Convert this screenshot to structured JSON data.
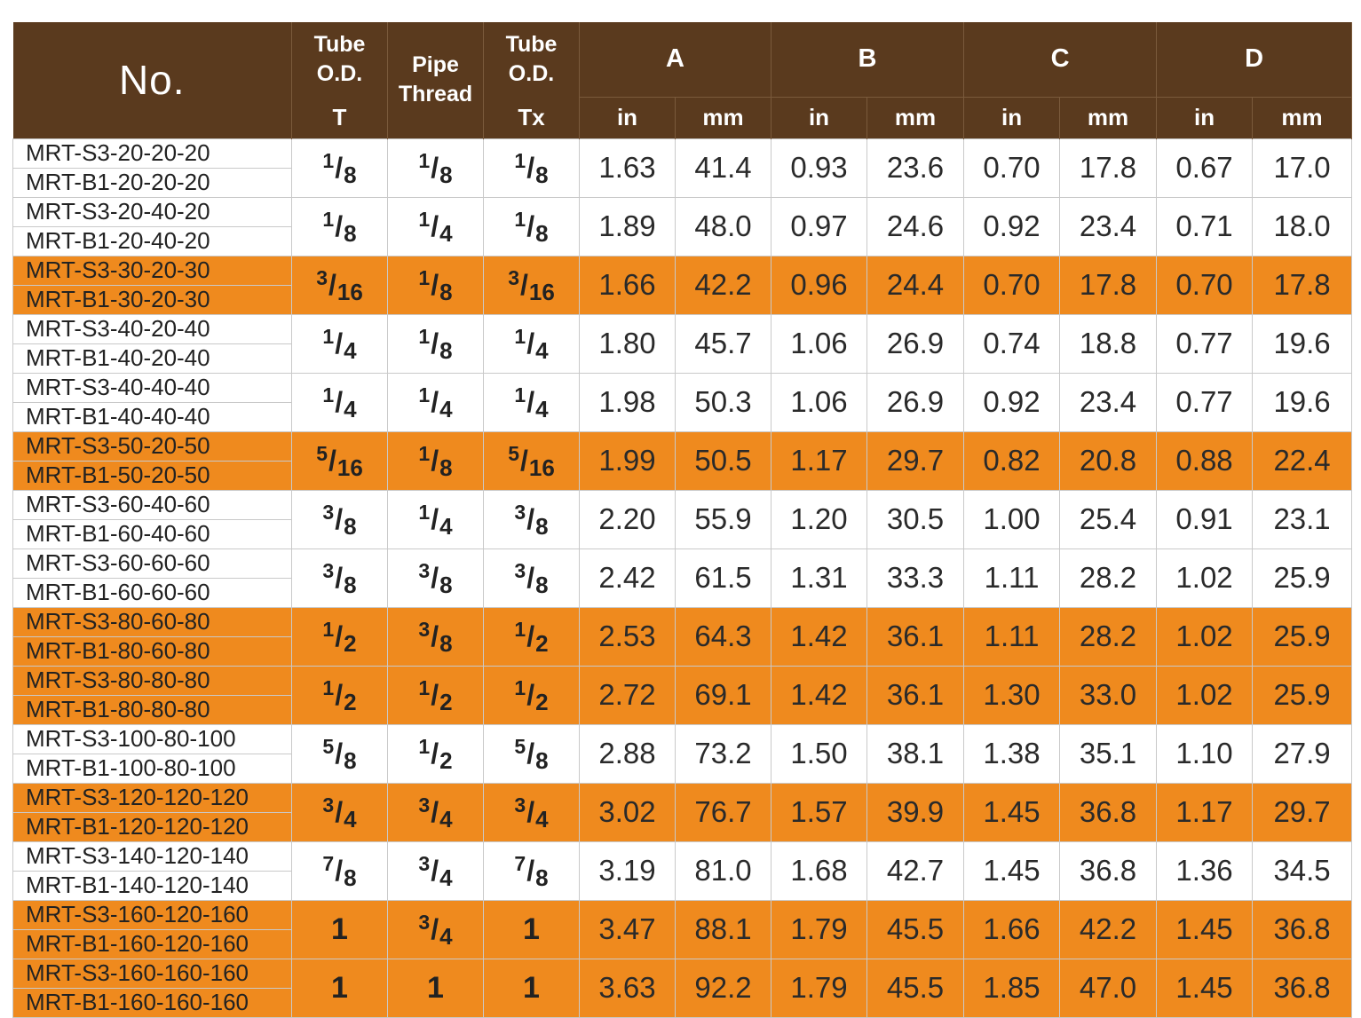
{
  "header": {
    "no": "No.",
    "tube_od_t": [
      "Tube",
      "O.D."
    ],
    "t_sub": "T",
    "pipe_thread": [
      "Pipe",
      "Thread"
    ],
    "tube_od_tx": [
      "Tube",
      "O.D."
    ],
    "tx_sub": "Tx",
    "groups": [
      "A",
      "B",
      "C",
      "D"
    ],
    "units": [
      "in",
      "mm"
    ]
  },
  "colors": {
    "header_bg": "#5a3a1e",
    "highlight": "#ef8a1e",
    "plain": "#ffffff"
  },
  "rows": [
    {
      "parts": [
        "MRT-S3-20-20-20",
        "MRT-B1-20-20-20"
      ],
      "t": [
        "1",
        "8"
      ],
      "pipe": [
        "1",
        "8"
      ],
      "tx": [
        "1",
        "8"
      ],
      "a": [
        "1.63",
        "41.4"
      ],
      "b": [
        "0.93",
        "23.6"
      ],
      "c": [
        "0.70",
        "17.8"
      ],
      "d": [
        "0.67",
        "17.0"
      ],
      "highlight": false
    },
    {
      "parts": [
        "MRT-S3-20-40-20",
        "MRT-B1-20-40-20"
      ],
      "t": [
        "1",
        "8"
      ],
      "pipe": [
        "1",
        "4"
      ],
      "tx": [
        "1",
        "8"
      ],
      "a": [
        "1.89",
        "48.0"
      ],
      "b": [
        "0.97",
        "24.6"
      ],
      "c": [
        "0.92",
        "23.4"
      ],
      "d": [
        "0.71",
        "18.0"
      ],
      "highlight": false
    },
    {
      "parts": [
        "MRT-S3-30-20-30",
        "MRT-B1-30-20-30"
      ],
      "t": [
        "3",
        "16"
      ],
      "pipe": [
        "1",
        "8"
      ],
      "tx": [
        "3",
        "16"
      ],
      "a": [
        "1.66",
        "42.2"
      ],
      "b": [
        "0.96",
        "24.4"
      ],
      "c": [
        "0.70",
        "17.8"
      ],
      "d": [
        "0.70",
        "17.8"
      ],
      "highlight": true
    },
    {
      "parts": [
        "MRT-S3-40-20-40",
        "MRT-B1-40-20-40"
      ],
      "t": [
        "1",
        "4"
      ],
      "pipe": [
        "1",
        "8"
      ],
      "tx": [
        "1",
        "4"
      ],
      "a": [
        "1.80",
        "45.7"
      ],
      "b": [
        "1.06",
        "26.9"
      ],
      "c": [
        "0.74",
        "18.8"
      ],
      "d": [
        "0.77",
        "19.6"
      ],
      "highlight": false
    },
    {
      "parts": [
        "MRT-S3-40-40-40",
        "MRT-B1-40-40-40"
      ],
      "t": [
        "1",
        "4"
      ],
      "pipe": [
        "1",
        "4"
      ],
      "tx": [
        "1",
        "4"
      ],
      "a": [
        "1.98",
        "50.3"
      ],
      "b": [
        "1.06",
        "26.9"
      ],
      "c": [
        "0.92",
        "23.4"
      ],
      "d": [
        "0.77",
        "19.6"
      ],
      "highlight": false
    },
    {
      "parts": [
        "MRT-S3-50-20-50",
        "MRT-B1-50-20-50"
      ],
      "t": [
        "5",
        "16"
      ],
      "pipe": [
        "1",
        "8"
      ],
      "tx": [
        "5",
        "16"
      ],
      "a": [
        "1.99",
        "50.5"
      ],
      "b": [
        "1.17",
        "29.7"
      ],
      "c": [
        "0.82",
        "20.8"
      ],
      "d": [
        "0.88",
        "22.4"
      ],
      "highlight": true
    },
    {
      "parts": [
        "MRT-S3-60-40-60",
        "MRT-B1-60-40-60"
      ],
      "t": [
        "3",
        "8"
      ],
      "pipe": [
        "1",
        "4"
      ],
      "tx": [
        "3",
        "8"
      ],
      "a": [
        "2.20",
        "55.9"
      ],
      "b": [
        "1.20",
        "30.5"
      ],
      "c": [
        "1.00",
        "25.4"
      ],
      "d": [
        "0.91",
        "23.1"
      ],
      "highlight": false
    },
    {
      "parts": [
        "MRT-S3-60-60-60",
        "MRT-B1-60-60-60"
      ],
      "t": [
        "3",
        "8"
      ],
      "pipe": [
        "3",
        "8"
      ],
      "tx": [
        "3",
        "8"
      ],
      "a": [
        "2.42",
        "61.5"
      ],
      "b": [
        "1.31",
        "33.3"
      ],
      "c": [
        "1.11",
        "28.2"
      ],
      "d": [
        "1.02",
        "25.9"
      ],
      "highlight": false
    },
    {
      "parts": [
        "MRT-S3-80-60-80",
        "MRT-B1-80-60-80"
      ],
      "t": [
        "1",
        "2"
      ],
      "pipe": [
        "3",
        "8"
      ],
      "tx": [
        "1",
        "2"
      ],
      "a": [
        "2.53",
        "64.3"
      ],
      "b": [
        "1.42",
        "36.1"
      ],
      "c": [
        "1.11",
        "28.2"
      ],
      "d": [
        "1.02",
        "25.9"
      ],
      "highlight": true
    },
    {
      "parts": [
        "MRT-S3-80-80-80",
        "MRT-B1-80-80-80"
      ],
      "t": [
        "1",
        "2"
      ],
      "pipe": [
        "1",
        "2"
      ],
      "tx": [
        "1",
        "2"
      ],
      "a": [
        "2.72",
        "69.1"
      ],
      "b": [
        "1.42",
        "36.1"
      ],
      "c": [
        "1.30",
        "33.0"
      ],
      "d": [
        "1.02",
        "25.9"
      ],
      "highlight": true
    },
    {
      "parts": [
        "MRT-S3-100-80-100",
        "MRT-B1-100-80-100"
      ],
      "t": [
        "5",
        "8"
      ],
      "pipe": [
        "1",
        "2"
      ],
      "tx": [
        "5",
        "8"
      ],
      "a": [
        "2.88",
        "73.2"
      ],
      "b": [
        "1.50",
        "38.1"
      ],
      "c": [
        "1.38",
        "35.1"
      ],
      "d": [
        "1.10",
        "27.9"
      ],
      "highlight": false
    },
    {
      "parts": [
        "MRT-S3-120-120-120",
        "MRT-B1-120-120-120"
      ],
      "t": [
        "3",
        "4"
      ],
      "pipe": [
        "3",
        "4"
      ],
      "tx": [
        "3",
        "4"
      ],
      "a": [
        "3.02",
        "76.7"
      ],
      "b": [
        "1.57",
        "39.9"
      ],
      "c": [
        "1.45",
        "36.8"
      ],
      "d": [
        "1.17",
        "29.7"
      ],
      "highlight": true
    },
    {
      "parts": [
        "MRT-S3-140-120-140",
        "MRT-B1-140-120-140"
      ],
      "t": [
        "7",
        "8"
      ],
      "pipe": [
        "3",
        "4"
      ],
      "tx": [
        "7",
        "8"
      ],
      "a": [
        "3.19",
        "81.0"
      ],
      "b": [
        "1.68",
        "42.7"
      ],
      "c": [
        "1.45",
        "36.8"
      ],
      "d": [
        "1.36",
        "34.5"
      ],
      "highlight": false
    },
    {
      "parts": [
        "MRT-S3-160-120-160",
        "MRT-B1-160-120-160"
      ],
      "t": [
        "1"
      ],
      "pipe": [
        "3",
        "4"
      ],
      "tx": [
        "1"
      ],
      "a": [
        "3.47",
        "88.1"
      ],
      "b": [
        "1.79",
        "45.5"
      ],
      "c": [
        "1.66",
        "42.2"
      ],
      "d": [
        "1.45",
        "36.8"
      ],
      "highlight": true
    },
    {
      "parts": [
        "MRT-S3-160-160-160",
        "MRT-B1-160-160-160"
      ],
      "t": [
        "1"
      ],
      "pipe": [
        "1"
      ],
      "tx": [
        "1"
      ],
      "a": [
        "3.63",
        "92.2"
      ],
      "b": [
        "1.79",
        "45.5"
      ],
      "c": [
        "1.85",
        "47.0"
      ],
      "d": [
        "1.45",
        "36.8"
      ],
      "highlight": true
    }
  ]
}
